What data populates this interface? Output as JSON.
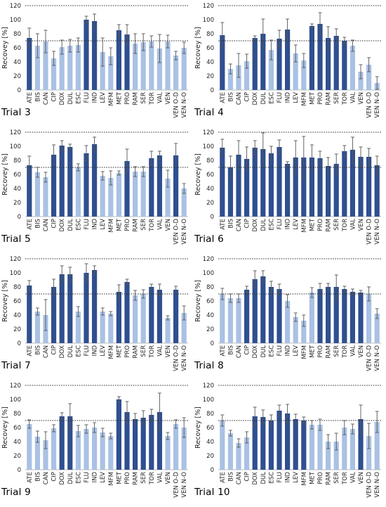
{
  "colors": {
    "dark": "#2f4f8f",
    "light": "#a9c1e4",
    "error": "#555555",
    "refline": "#333333"
  },
  "chart_data": [
    {
      "type": "bar",
      "title": "Trial 3",
      "ylabel": "Recovey [%]",
      "ylim": [
        0,
        120
      ],
      "yticks": [
        0,
        20,
        40,
        60,
        80,
        100,
        120
      ],
      "reference_lines": [
        70,
        120
      ],
      "categories": [
        "ATE",
        "BIS",
        "CAN",
        "CIP",
        "DOX",
        "DUL",
        "ESC",
        "FLU",
        "IND",
        "LEV",
        "MFM",
        "MET",
        "PRO",
        "RAM",
        "SER",
        "TOR",
        "VAL",
        "VEN",
        "VEN O-D",
        "VEN N-O"
      ],
      "values": [
        74,
        63,
        69,
        45,
        61,
        63,
        64,
        100,
        98,
        54,
        48,
        85,
        79,
        66,
        68,
        69,
        59,
        69,
        49,
        60
      ],
      "errors": [
        14,
        17,
        16,
        10,
        10,
        9,
        10,
        5,
        10,
        20,
        12,
        8,
        14,
        14,
        12,
        8,
        20,
        9,
        6,
        8
      ],
      "shade": [
        "dark",
        "light",
        "light",
        "light",
        "light",
        "light",
        "light",
        "dark",
        "dark",
        "light",
        "light",
        "dark",
        "dark",
        "light",
        "light",
        "light",
        "light",
        "light",
        "light",
        "light"
      ]
    },
    {
      "type": "bar",
      "title": "Trial 4",
      "ylabel": "Recovey [%]",
      "ylim": [
        0,
        120
      ],
      "yticks": [
        0,
        20,
        40,
        60,
        80,
        100,
        120
      ],
      "reference_lines": [
        70,
        120
      ],
      "categories": [
        "ATE",
        "BIS",
        "CAN",
        "CIP",
        "DOX",
        "DUL",
        "ESC",
        "FLU",
        "IND",
        "LEV",
        "MFM",
        "MET",
        "PRO",
        "RAM",
        "SER",
        "TOR",
        "VAL",
        "VEN",
        "VEN O-D",
        "VEN N-O"
      ],
      "values": [
        78,
        30,
        35,
        41,
        74,
        80,
        57,
        73,
        86,
        52,
        42,
        91,
        94,
        74,
        77,
        70,
        63,
        26,
        36,
        10
      ],
      "errors": [
        18,
        7,
        17,
        10,
        3,
        21,
        14,
        12,
        15,
        12,
        10,
        3,
        16,
        16,
        10,
        5,
        8,
        10,
        10,
        9
      ],
      "shade": [
        "dark",
        "light",
        "light",
        "light",
        "dark",
        "dark",
        "light",
        "dark",
        "dark",
        "light",
        "light",
        "dark",
        "dark",
        "dark",
        "dark",
        "dark",
        "light",
        "light",
        "light",
        "light"
      ]
    },
    {
      "type": "bar",
      "title": "Trial 5",
      "ylabel": "Recovey [%]",
      "ylim": [
        0,
        120
      ],
      "yticks": [
        0,
        20,
        40,
        60,
        80,
        100,
        120
      ],
      "reference_lines": [
        70,
        120
      ],
      "categories": [
        "ATE",
        "BIS",
        "CAN",
        "CIP",
        "DOX",
        "DUL",
        "ESC",
        "FLU",
        "IND",
        "LEV",
        "MFM",
        "MET",
        "PRO",
        "RAM",
        "SER",
        "TOR",
        "VAL",
        "VEN",
        "VEN O-D",
        "VEN N-O"
      ],
      "values": [
        73,
        63,
        56,
        88,
        101,
        99,
        70,
        90,
        103,
        58,
        55,
        62,
        79,
        64,
        64,
        83,
        87,
        54,
        87,
        40
      ],
      "errors": [
        13,
        7,
        7,
        14,
        7,
        4,
        5,
        11,
        10,
        6,
        10,
        3,
        17,
        7,
        7,
        10,
        6,
        12,
        17,
        7
      ],
      "shade": [
        "dark",
        "light",
        "light",
        "dark",
        "dark",
        "dark",
        "light",
        "dark",
        "dark",
        "light",
        "light",
        "light",
        "dark",
        "light",
        "light",
        "dark",
        "dark",
        "light",
        "dark",
        "light"
      ]
    },
    {
      "type": "bar",
      "title": "Trial 6",
      "ylabel": "Recovey [%]",
      "ylim": [
        0,
        120
      ],
      "yticks": [
        0,
        20,
        40,
        60,
        80,
        100,
        120
      ],
      "reference_lines": [
        70,
        120
      ],
      "categories": [
        "ATE",
        "BIS",
        "CAN",
        "CIP",
        "DOX",
        "DUL",
        "ESC",
        "FLU",
        "IND",
        "LEV",
        "MFM",
        "MET",
        "PRO",
        "RAM",
        "SER",
        "TOR",
        "VAL",
        "VEN",
        "VEN O-D",
        "VEN N-O"
      ],
      "values": [
        98,
        70,
        88,
        82,
        98,
        96,
        90,
        99,
        75,
        84,
        84,
        84,
        83,
        72,
        75,
        93,
        95,
        85,
        85,
        73
      ],
      "errors": [
        12,
        16,
        20,
        17,
        10,
        23,
        10,
        10,
        3,
        24,
        30,
        18,
        10,
        12,
        14,
        8,
        18,
        14,
        12,
        13
      ],
      "shade": [
        "dark",
        "dark",
        "dark",
        "dark",
        "dark",
        "dark",
        "dark",
        "dark",
        "dark",
        "dark",
        "dark",
        "dark",
        "dark",
        "dark",
        "dark",
        "dark",
        "dark",
        "dark",
        "dark",
        "dark"
      ]
    },
    {
      "type": "bar",
      "title": "Trial 7",
      "ylabel": "Recovey [%]",
      "ylim": [
        0,
        120
      ],
      "yticks": [
        0,
        20,
        40,
        60,
        80,
        100,
        120
      ],
      "reference_lines": [
        70,
        120
      ],
      "categories": [
        "ATE",
        "BIS",
        "CAN",
        "CIP",
        "DOX",
        "DUL",
        "ESC",
        "FLU",
        "IND",
        "LEV",
        "MFM",
        "MET",
        "PRO",
        "RAM",
        "SER",
        "TOR",
        "VAL",
        "VEN",
        "VEN O-D",
        "VEN N-O"
      ],
      "values": [
        82,
        45,
        40,
        80,
        98,
        98,
        45,
        100,
        104,
        45,
        42,
        73,
        87,
        68,
        70,
        80,
        76,
        36,
        76,
        43
      ],
      "errors": [
        7,
        5,
        22,
        11,
        12,
        10,
        7,
        13,
        6,
        5,
        3,
        10,
        4,
        7,
        6,
        4,
        8,
        3,
        5,
        10
      ],
      "shade": [
        "dark",
        "light",
        "light",
        "dark",
        "dark",
        "dark",
        "light",
        "dark",
        "dark",
        "light",
        "light",
        "dark",
        "dark",
        "light",
        "light",
        "dark",
        "dark",
        "light",
        "dark",
        "light"
      ]
    },
    {
      "type": "bar",
      "title": "Trial 8",
      "ylabel": "Recovey [%]",
      "ylim": [
        0,
        120
      ],
      "yticks": [
        0,
        20,
        40,
        60,
        80,
        100,
        120
      ],
      "reference_lines": [
        70,
        120
      ],
      "categories": [
        "ATE",
        "BIS",
        "CAN",
        "CIP",
        "DOX",
        "DUL",
        "ESC",
        "FLU",
        "IND",
        "LEV",
        "MFM",
        "MET",
        "PRO",
        "RAM",
        "SER",
        "TOR",
        "VAL",
        "VEN",
        "VEN O-D",
        "VEN N-O"
      ],
      "values": [
        70,
        64,
        64,
        76,
        91,
        95,
        80,
        77,
        60,
        37,
        32,
        72,
        77,
        80,
        80,
        77,
        73,
        72,
        70,
        42
      ],
      "errors": [
        8,
        6,
        6,
        5,
        12,
        8,
        8,
        7,
        9,
        6,
        8,
        7,
        8,
        5,
        17,
        4,
        4,
        3,
        10,
        7
      ],
      "shade": [
        "light",
        "light",
        "light",
        "dark",
        "dark",
        "dark",
        "dark",
        "dark",
        "light",
        "light",
        "light",
        "light",
        "dark",
        "dark",
        "dark",
        "dark",
        "dark",
        "dark",
        "light",
        "light"
      ]
    },
    {
      "type": "bar",
      "title": "Trial 9",
      "ylabel": "Recovey [%]",
      "ylim": [
        0,
        120
      ],
      "yticks": [
        0,
        20,
        40,
        60,
        80,
        100,
        120
      ],
      "reference_lines": [
        70,
        120
      ],
      "categories": [
        "ATE",
        "BIS",
        "CAN",
        "CIP",
        "DOX",
        "DUL",
        "ESC",
        "FLU",
        "IND",
        "LEV",
        "MFM",
        "MET",
        "PRO",
        "RAM",
        "SER",
        "TOR",
        "VAL",
        "VEN",
        "VEN O-D",
        "VEN N-O"
      ],
      "values": [
        65,
        47,
        42,
        59,
        76,
        76,
        55,
        58,
        60,
        53,
        48,
        100,
        82,
        72,
        74,
        78,
        82,
        48,
        65,
        60
      ],
      "errors": [
        6,
        8,
        12,
        5,
        5,
        18,
        8,
        6,
        7,
        6,
        4,
        4,
        15,
        8,
        10,
        8,
        27,
        5,
        6,
        14
      ],
      "shade": [
        "light",
        "light",
        "light",
        "light",
        "dark",
        "dark",
        "light",
        "light",
        "light",
        "light",
        "light",
        "dark",
        "dark",
        "dark",
        "dark",
        "dark",
        "dark",
        "light",
        "light",
        "light"
      ]
    },
    {
      "type": "bar",
      "title": "Trial 10",
      "ylabel": "Recovey [%]",
      "ylim": [
        0,
        120
      ],
      "yticks": [
        0,
        20,
        40,
        60,
        80,
        100,
        120
      ],
      "reference_lines": [
        70,
        120
      ],
      "categories": [
        "ATE",
        "BIS",
        "CAN",
        "CIP",
        "DOX",
        "DUL",
        "ESC",
        "FLU",
        "IND",
        "LEV",
        "MFM",
        "MET",
        "PRO",
        "RAM",
        "SER",
        "TOR",
        "VAL",
        "VEN",
        "VEN O-D",
        "VEN N-O"
      ],
      "values": [
        70,
        52,
        38,
        46,
        76,
        75,
        70,
        84,
        80,
        72,
        70,
        64,
        64,
        40,
        40,
        60,
        58,
        72,
        48,
        68
      ],
      "errors": [
        8,
        4,
        6,
        8,
        13,
        10,
        8,
        8,
        13,
        7,
        5,
        6,
        8,
        10,
        12,
        10,
        7,
        20,
        18,
        15
      ],
      "shade": [
        "light",
        "light",
        "light",
        "light",
        "dark",
        "dark",
        "dark",
        "dark",
        "dark",
        "dark",
        "dark",
        "light",
        "light",
        "light",
        "light",
        "light",
        "light",
        "dark",
        "light",
        "light"
      ]
    }
  ]
}
